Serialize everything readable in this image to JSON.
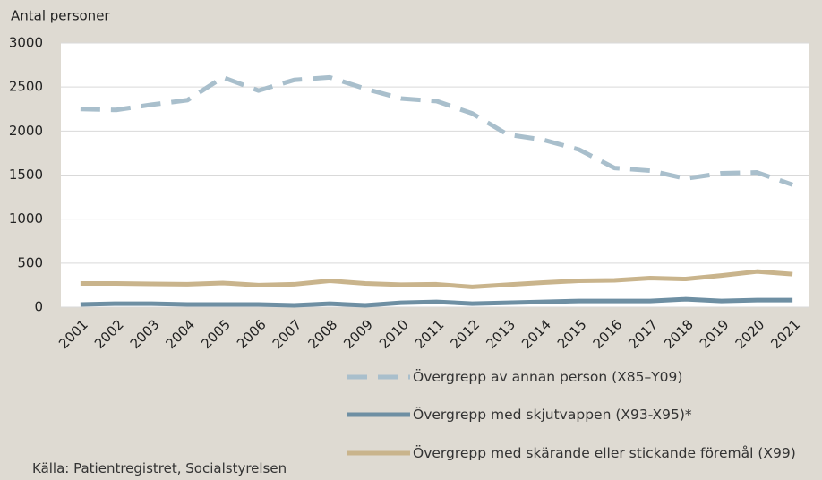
{
  "chart_data": {
    "type": "line",
    "y_label": "Antal personer",
    "source": "Källa: Patientregistret, Socialstyrelsen",
    "categories": [
      "2001",
      "2002",
      "2003",
      "2004",
      "2005",
      "2006",
      "2007",
      "2008",
      "2009",
      "2010",
      "2011",
      "2012",
      "2013",
      "2014",
      "2015",
      "2016",
      "2017",
      "2018",
      "2019",
      "2020",
      "2021"
    ],
    "series": [
      {
        "name": "Övergrepp av annan person (X85–Y09)",
        "color": "#a9bfcc",
        "line_style": "dashed",
        "values": [
          2250,
          2240,
          2300,
          2350,
          2610,
          2460,
          2580,
          2610,
          2480,
          2370,
          2340,
          2200,
          1960,
          1900,
          1790,
          1580,
          1550,
          1460,
          1520,
          1530,
          1390
        ]
      },
      {
        "name": "Övergrepp med skjutvappen (X93-X95)*",
        "color": "#6e8fa3",
        "line_style": "solid",
        "values": [
          30,
          40,
          40,
          30,
          30,
          30,
          20,
          40,
          20,
          50,
          60,
          40,
          50,
          60,
          70,
          70,
          70,
          90,
          70,
          80,
          80
        ]
      },
      {
        "name": "Övergrepp  med skärande eller stickande föremål (X99)",
        "color": "#c9b48c",
        "line_style": "solid",
        "values": [
          270,
          270,
          265,
          260,
          275,
          250,
          260,
          300,
          270,
          255,
          260,
          230,
          255,
          280,
          300,
          305,
          330,
          320,
          360,
          405,
          375
        ]
      }
    ],
    "ylim": [
      0,
      3000
    ],
    "yticks": [
      0,
      500,
      1000,
      1500,
      2000,
      2500,
      3000
    ],
    "grid": true
  }
}
